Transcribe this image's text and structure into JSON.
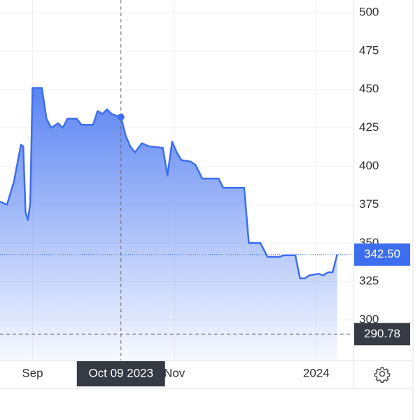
{
  "chart_data": {
    "type": "area",
    "x": [
      "2023-08-18",
      "2023-08-21",
      "2023-08-24",
      "2023-08-27",
      "2023-08-28",
      "2023-08-29",
      "2023-08-30",
      "2023-08-31",
      "2023-09-01",
      "2023-09-05",
      "2023-09-07",
      "2023-09-09",
      "2023-09-12",
      "2023-09-14",
      "2023-09-16",
      "2023-09-20",
      "2023-09-22",
      "2023-09-27",
      "2023-09-29",
      "2023-10-01",
      "2023-10-03",
      "2023-10-05",
      "2023-10-09",
      "2023-10-11",
      "2023-10-13",
      "2023-10-15",
      "2023-10-18",
      "2023-10-21",
      "2023-10-27",
      "2023-10-29",
      "2023-10-31",
      "2023-11-02",
      "2023-11-04",
      "2023-11-08",
      "2023-11-10",
      "2023-11-13",
      "2023-11-20",
      "2023-11-22",
      "2023-12-01",
      "2023-12-03",
      "2023-12-08",
      "2023-12-11",
      "2023-12-16",
      "2023-12-18",
      "2023-12-23",
      "2023-12-25",
      "2023-12-27",
      "2023-12-29",
      "2024-01-02",
      "2024-01-04",
      "2024-01-06",
      "2024-01-08",
      "2024-01-10"
    ],
    "series": [
      {
        "color": "#3d6ef0",
        "values": [
          377,
          375,
          390,
          414,
          413,
          370,
          365,
          376,
          451,
          451,
          431,
          425,
          428,
          425,
          431,
          431,
          427,
          427,
          436,
          434,
          437,
          434,
          432,
          420,
          413,
          409,
          415,
          413,
          412,
          394,
          416,
          409,
          404,
          403,
          401,
          392,
          392,
          386,
          386,
          350,
          350,
          341,
          341,
          342,
          342,
          327,
          327,
          329,
          330,
          329,
          331,
          331,
          342.5
        ]
      }
    ],
    "xlim": [
      "2023-08-18",
      "2024-01-17"
    ],
    "xticks": [
      {
        "value": "2023-09-01",
        "label": "Sep"
      },
      {
        "value": "2023-11-01",
        "label": "Nov"
      },
      {
        "value": "2024-01-01",
        "label": "2024"
      }
    ],
    "ylim": [
      273.6,
      508.2
    ],
    "yticks": [
      300,
      325,
      350,
      375,
      400,
      425,
      450,
      475,
      500
    ],
    "grid": true,
    "last_value": {
      "value": 342.5,
      "label": "342.50"
    },
    "crosshair": {
      "x": {
        "value": "2023-10-09",
        "label": "Oct 09 2023"
      },
      "y": 290.78
    }
  }
}
